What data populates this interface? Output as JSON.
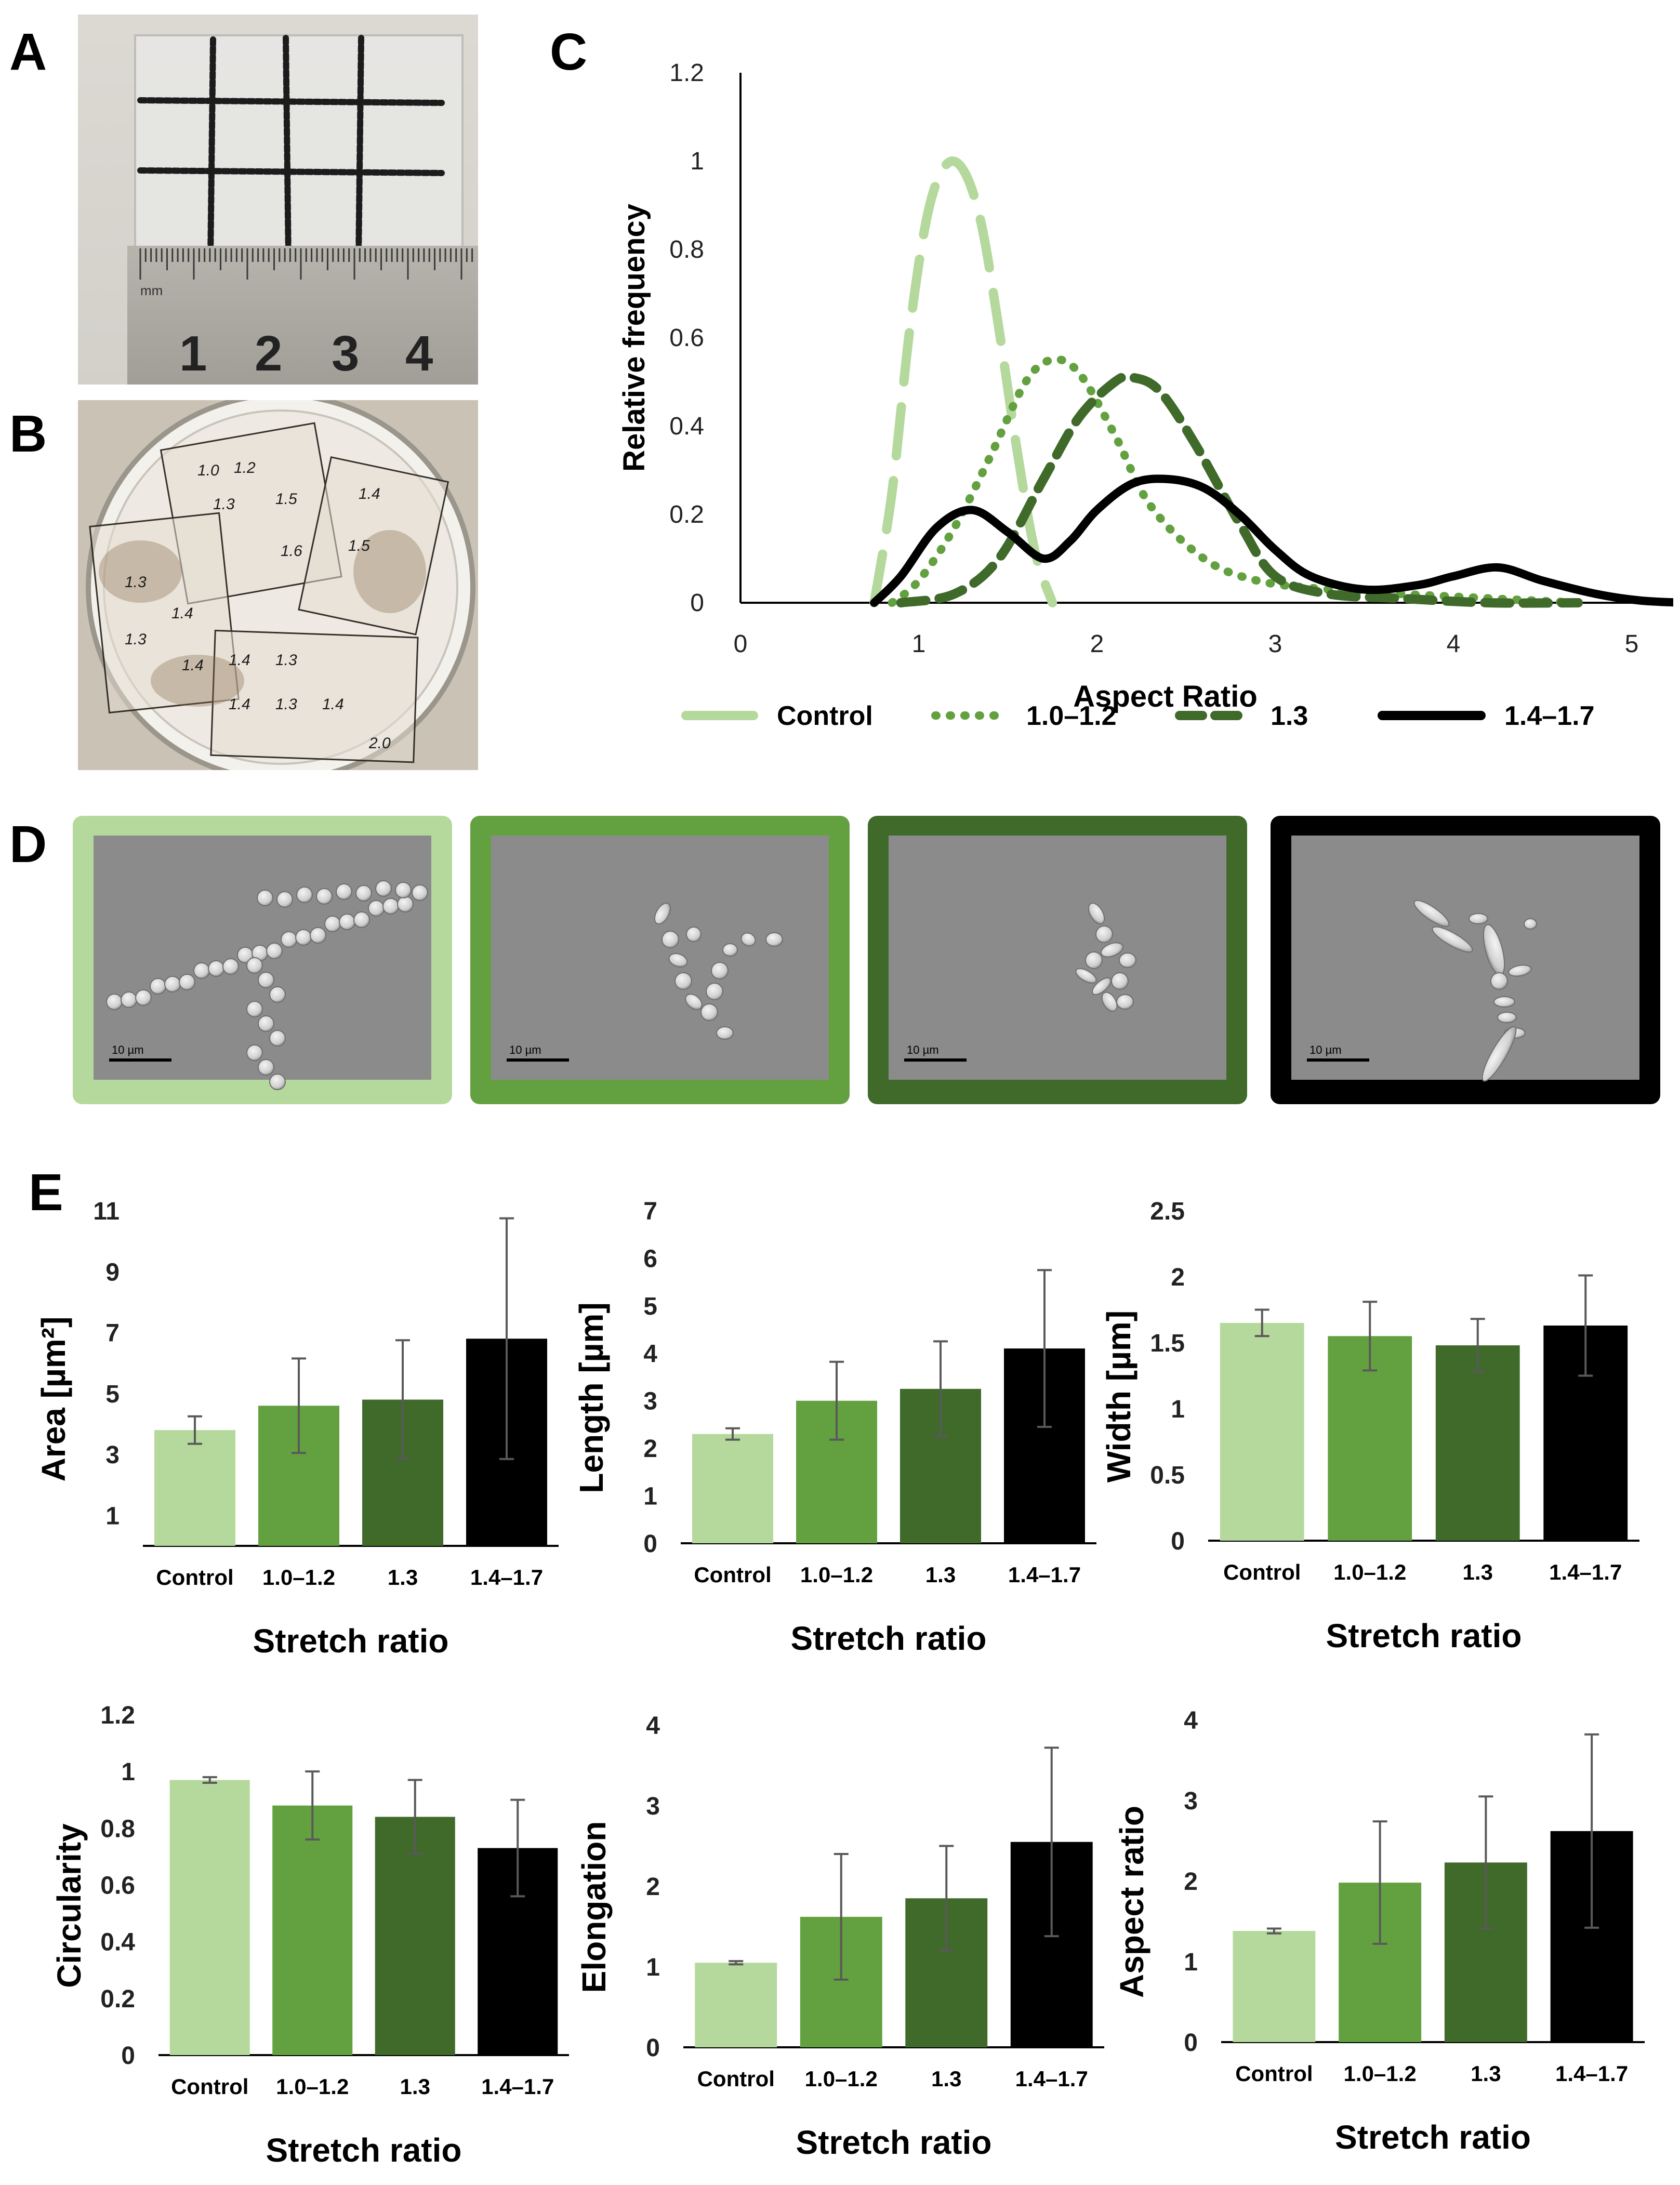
{
  "panel_labels": {
    "a": "A",
    "b": "B",
    "c": "C",
    "d": "D",
    "e": "E"
  },
  "photo_a": {
    "ruler_numbers": [
      "1",
      "2",
      "3",
      "4"
    ],
    "ruler_unit": "mm"
  },
  "photo_b": {
    "handwritten_labels": [
      "1.0",
      "1.2",
      "1.5",
      "1.3",
      "1.4",
      "1.5",
      "1.6",
      "1.3",
      "1.4",
      "1.3",
      "1.4",
      "1.4",
      "1.3",
      "1.4",
      "1.3",
      "1.4",
      "2.0"
    ]
  },
  "sem": {
    "scale_bar_label": "10 µm",
    "frames": [
      {
        "group": "Control",
        "color": "#b5d99c"
      },
      {
        "group": "1.0–1.2",
        "color": "#63a140"
      },
      {
        "group": "1.3",
        "color": "#3f6a2a"
      },
      {
        "group": "1.4–1.7",
        "color": "#000000"
      }
    ]
  },
  "colors": {
    "control": "#b5d99c",
    "g12": "#63a140",
    "g13": "#3f6a2a",
    "g17": "#000000",
    "errorbar": "#595959",
    "axis": "#000000"
  },
  "chart_data": [
    {
      "type": "line",
      "panel": "C",
      "xlabel": "Aspect Ratio",
      "ylabel": "Relative frequency",
      "xlim": [
        0,
        5
      ],
      "ylim": [
        0,
        1.2
      ],
      "xticks": [
        "0",
        "1",
        "2",
        "3",
        "4",
        "5"
      ],
      "yticks": [
        "0",
        "0.2",
        "0.4",
        "0.6",
        "0.8",
        "1",
        "1.2"
      ],
      "legend_position": "bottom",
      "series": [
        {
          "name": "Control",
          "style": "long-dash",
          "color": "#b5d99c",
          "x": [
            0.75,
            0.85,
            0.95,
            1.05,
            1.15,
            1.25,
            1.35,
            1.45,
            1.55,
            1.65,
            1.75
          ],
          "y": [
            0.0,
            0.25,
            0.62,
            0.88,
            0.99,
            0.98,
            0.86,
            0.62,
            0.35,
            0.12,
            0.0
          ]
        },
        {
          "name": "1.0–1.2",
          "style": "dotted",
          "color": "#63a140",
          "x": [
            0.85,
            1.0,
            1.2,
            1.4,
            1.6,
            1.75,
            1.9,
            2.1,
            2.3,
            2.6,
            2.9,
            3.3,
            3.7,
            4.2,
            4.7
          ],
          "y": [
            0.0,
            0.05,
            0.17,
            0.33,
            0.5,
            0.55,
            0.52,
            0.38,
            0.22,
            0.1,
            0.05,
            0.03,
            0.02,
            0.01,
            0.0
          ]
        },
        {
          "name": "1.3",
          "style": "dashed",
          "color": "#3f6a2a",
          "x": [
            0.9,
            1.2,
            1.45,
            1.7,
            1.9,
            2.1,
            2.2,
            2.35,
            2.55,
            2.8,
            3.0,
            3.3,
            3.7,
            4.2,
            4.7
          ],
          "y": [
            0.0,
            0.02,
            0.1,
            0.28,
            0.42,
            0.5,
            0.51,
            0.48,
            0.36,
            0.18,
            0.06,
            0.02,
            0.01,
            0.0,
            0.0
          ]
        },
        {
          "name": "1.4–1.7",
          "style": "solid",
          "color": "#000000",
          "x": [
            0.75,
            0.9,
            1.1,
            1.3,
            1.5,
            1.7,
            1.85,
            2.0,
            2.2,
            2.4,
            2.6,
            2.8,
            3.0,
            3.2,
            3.5,
            3.8,
            4.0,
            4.25,
            4.5,
            4.8,
            5.05,
            5.3
          ],
          "y": [
            0.0,
            0.06,
            0.17,
            0.21,
            0.16,
            0.1,
            0.14,
            0.21,
            0.27,
            0.28,
            0.26,
            0.2,
            0.12,
            0.06,
            0.03,
            0.04,
            0.06,
            0.08,
            0.05,
            0.02,
            0.005,
            0.0
          ]
        }
      ]
    },
    {
      "type": "bar",
      "panel": "E",
      "ylabel": "Area [µm²]",
      "xlabel": "Stretch ratio",
      "categories": [
        "Control",
        "1.0–1.2",
        "1.3",
        "1.4–1.7"
      ],
      "values": [
        3.8,
        4.6,
        4.8,
        6.8
      ],
      "errors": [
        0.45,
        1.55,
        1.95,
        3.95
      ],
      "ylim": [
        0,
        11
      ],
      "yticks": [
        "1",
        "3",
        "5",
        "7",
        "9",
        "11"
      ],
      "ytick_values": [
        1,
        3,
        5,
        7,
        9,
        11
      ]
    },
    {
      "type": "bar",
      "panel": "E",
      "ylabel": "Length [µm]",
      "xlabel": "Stretch ratio",
      "categories": [
        "Control",
        "1.0–1.2",
        "1.3",
        "1.4–1.7"
      ],
      "values": [
        2.3,
        3.0,
        3.25,
        4.1
      ],
      "errors": [
        0.12,
        0.82,
        1.0,
        1.65
      ],
      "ylim": [
        0,
        7
      ],
      "yticks": [
        "0",
        "1",
        "2",
        "3",
        "4",
        "5",
        "6",
        "7"
      ],
      "ytick_values": [
        0,
        1,
        2,
        3,
        4,
        5,
        6,
        7
      ]
    },
    {
      "type": "bar",
      "panel": "E",
      "ylabel": "Width [µm]",
      "xlabel": "Stretch ratio",
      "categories": [
        "Control",
        "1.0–1.2",
        "1.3",
        "1.4–1.7"
      ],
      "values": [
        1.65,
        1.55,
        1.48,
        1.63
      ],
      "errors": [
        0.1,
        0.26,
        0.2,
        0.38
      ],
      "ylim": [
        0,
        2.5
      ],
      "yticks": [
        "0",
        "0.5",
        "1",
        "1.5",
        "2",
        "2.5"
      ],
      "ytick_values": [
        0,
        0.5,
        1,
        1.5,
        2,
        2.5
      ]
    },
    {
      "type": "bar",
      "panel": "E",
      "ylabel": "Circularity",
      "xlabel": "Stretch ratio",
      "categories": [
        "Control",
        "1.0–1.2",
        "1.3",
        "1.4–1.7"
      ],
      "values": [
        0.97,
        0.88,
        0.84,
        0.73
      ],
      "errors": [
        0.01,
        0.12,
        0.13,
        0.17
      ],
      "ylim": [
        0,
        1.2
      ],
      "yticks": [
        "0",
        "0.2",
        "0.4",
        "0.6",
        "0.8",
        "1",
        "1.2"
      ],
      "ytick_values": [
        0,
        0.2,
        0.4,
        0.6,
        0.8,
        1,
        1.2
      ]
    },
    {
      "type": "bar",
      "panel": "E",
      "ylabel": "Elongation",
      "xlabel": "Stretch ratio",
      "categories": [
        "Control",
        "1.0–1.2",
        "1.3",
        "1.4–1.7"
      ],
      "values": [
        1.05,
        1.62,
        1.85,
        2.55
      ],
      "errors": [
        0.02,
        0.78,
        0.65,
        1.17
      ],
      "ylim": [
        0,
        4
      ],
      "yticks": [
        "0",
        "1",
        "2",
        "3",
        "4"
      ],
      "ytick_values": [
        0,
        1,
        2,
        3,
        4
      ]
    },
    {
      "type": "bar",
      "panel": "E",
      "ylabel": "Aspect ratio",
      "xlabel": "Stretch ratio",
      "categories": [
        "Control",
        "1.0–1.2",
        "1.3",
        "1.4–1.7"
      ],
      "values": [
        1.38,
        1.98,
        2.23,
        2.62
      ],
      "errors": [
        0.03,
        0.76,
        0.82,
        1.2
      ],
      "ylim": [
        0,
        4
      ],
      "yticks": [
        "0",
        "1",
        "2",
        "3",
        "4"
      ],
      "ytick_values": [
        0,
        1,
        2,
        3,
        4
      ]
    }
  ]
}
